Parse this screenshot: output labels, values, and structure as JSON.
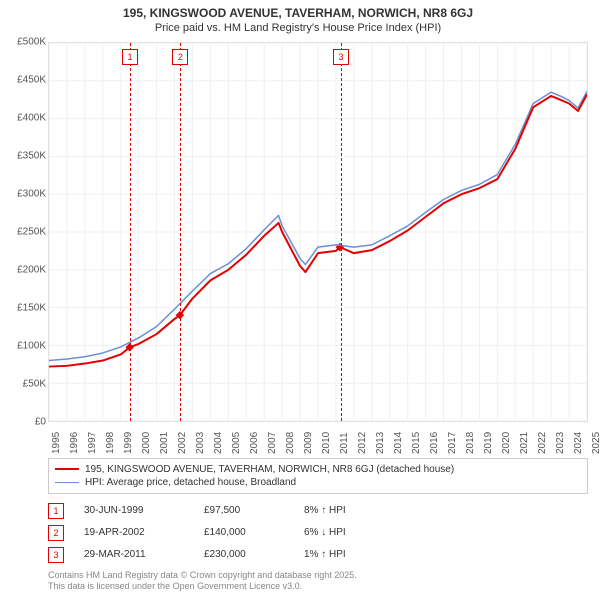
{
  "title_line1": "195, KINGSWOOD AVENUE, TAVERHAM, NORWICH, NR8 6GJ",
  "title_line2": "Price paid vs. HM Land Registry's House Price Index (HPI)",
  "chart": {
    "type": "line",
    "background_color": "#ffffff",
    "border_color": "#e0e0e0",
    "grid_color": "#f0f0f0",
    "label_color": "#555555",
    "label_fontsize": 10,
    "ylim": [
      0,
      500000
    ],
    "ytick_step": 50000,
    "ytick_labels": [
      "£0",
      "£50K",
      "£100K",
      "£150K",
      "£200K",
      "£250K",
      "£300K",
      "£350K",
      "£400K",
      "£450K",
      "£500K"
    ],
    "xmin": 1995,
    "xmax": 2025,
    "xtick_step": 1,
    "xtick_labels": [
      "1995",
      "1996",
      "1997",
      "1998",
      "1999",
      "2000",
      "2001",
      "2002",
      "2003",
      "2004",
      "2005",
      "2006",
      "2007",
      "2008",
      "2009",
      "2010",
      "2011",
      "2012",
      "2013",
      "2014",
      "2015",
      "2016",
      "2017",
      "2018",
      "2019",
      "2020",
      "2021",
      "2022",
      "2023",
      "2024",
      "2025"
    ],
    "series": [
      {
        "name": "195, KINGSWOOD AVENUE, TAVERHAM, NORWICH, NR8 6GJ (detached house)",
        "color": "#e40000",
        "line_width": 2,
        "x": [
          1995,
          1996,
          1997,
          1998,
          1999,
          1999.5,
          2000,
          2001,
          2002,
          2002.3,
          2003,
          2004,
          2005,
          2006,
          2007,
          2007.8,
          2008,
          2009,
          2009.3,
          2010,
          2011,
          2011.22,
          2012,
          2013,
          2014,
          2015,
          2016,
          2017,
          2018,
          2019,
          2020,
          2021,
          2022,
          2023,
          2023.5,
          2024,
          2024.5,
          2025
        ],
        "y": [
          72000,
          73000,
          76000,
          80000,
          88000,
          97500,
          102000,
          115000,
          135000,
          140000,
          162000,
          186000,
          200000,
          220000,
          245000,
          262000,
          250000,
          205000,
          197000,
          222000,
          225000,
          230000,
          222000,
          226000,
          238000,
          252000,
          270000,
          288000,
          300000,
          308000,
          320000,
          360000,
          415000,
          430000,
          425000,
          420000,
          410000,
          432000
        ]
      },
      {
        "name": "HPI: Average price, detached house, Broadland",
        "color": "#6a8fd6",
        "line_width": 1.5,
        "x": [
          1995,
          1996,
          1997,
          1998,
          1999,
          2000,
          2001,
          2002,
          2003,
          2004,
          2005,
          2006,
          2007,
          2007.8,
          2008,
          2009,
          2009.3,
          2010,
          2011,
          2012,
          2013,
          2014,
          2015,
          2016,
          2017,
          2018,
          2019,
          2020,
          2021,
          2022,
          2023,
          2023.5,
          2024,
          2024.5,
          2025
        ],
        "y": [
          80000,
          82000,
          85000,
          90000,
          98000,
          110000,
          125000,
          148000,
          172000,
          195000,
          208000,
          228000,
          253000,
          272000,
          258000,
          215000,
          207000,
          230000,
          233000,
          230000,
          233000,
          245000,
          258000,
          276000,
          293000,
          305000,
          313000,
          326000,
          366000,
          420000,
          435000,
          430000,
          424000,
          414000,
          436000
        ]
      }
    ],
    "events": [
      {
        "n": "1",
        "x": 1999.5,
        "color": "#e40000",
        "y_marker": 97500
      },
      {
        "n": "2",
        "x": 2002.3,
        "color": "#e40000",
        "y_marker": 140000
      },
      {
        "n": "3",
        "x": 2011.22,
        "color": "#e40000",
        "y_marker": 230000
      }
    ]
  },
  "legend": {
    "items": [
      {
        "color": "#e40000",
        "width": 2,
        "label": "195, KINGSWOOD AVENUE, TAVERHAM, NORWICH, NR8 6GJ (detached house)"
      },
      {
        "color": "#6a8fd6",
        "width": 1.5,
        "label": "HPI: Average price, detached house, Broadland"
      }
    ]
  },
  "events_table": [
    {
      "n": "1",
      "color": "#e40000",
      "date": "30-JUN-1999",
      "price": "£97,500",
      "delta": "8% ↑ HPI"
    },
    {
      "n": "2",
      "color": "#e40000",
      "date": "19-APR-2002",
      "price": "£140,000",
      "delta": "6% ↓ HPI"
    },
    {
      "n": "3",
      "color": "#e40000",
      "date": "29-MAR-2011",
      "price": "£230,000",
      "delta": "1% ↑ HPI"
    }
  ],
  "footer_line1": "Contains HM Land Registry data © Crown copyright and database right 2025.",
  "footer_line2": "This data is licensed under the Open Government Licence v3.0."
}
